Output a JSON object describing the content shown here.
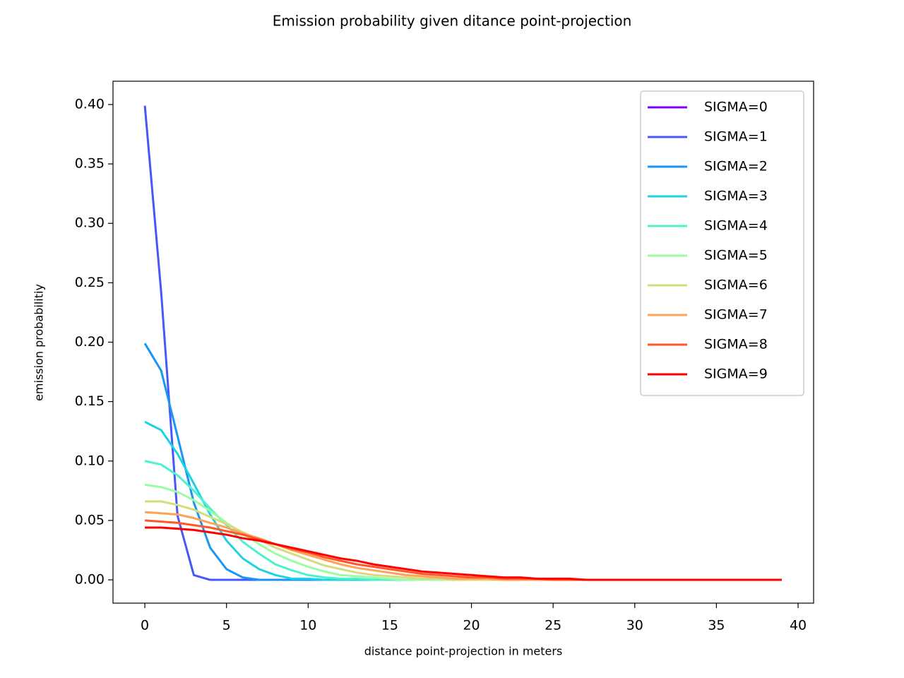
{
  "chart_data": {
    "type": "line",
    "title": "Emission probability given ditance point-projection",
    "xlabel": "distance point-projection in meters",
    "ylabel": "emission probabilitiy",
    "x": [
      0,
      1,
      2,
      3,
      4,
      5,
      6,
      7,
      8,
      9,
      10,
      11,
      12,
      13,
      14,
      15,
      16,
      17,
      18,
      19,
      20,
      21,
      22,
      23,
      24,
      25,
      26,
      27,
      28,
      29,
      30,
      31,
      32,
      33,
      34,
      35,
      36,
      37,
      38,
      39
    ],
    "xlim": [
      -1.95,
      40.95
    ],
    "xticks": [
      0,
      5,
      10,
      15,
      20,
      25,
      30,
      35,
      40
    ],
    "ylim": [
      -0.0196,
      0.4196
    ],
    "yticks": [
      {
        "value": 0,
        "label": "0.00"
      },
      {
        "value": 0.05,
        "label": "0.05"
      },
      {
        "value": 0.1,
        "label": "0.10"
      },
      {
        "value": 0.15,
        "label": "0.15"
      },
      {
        "value": 0.2,
        "label": "0.20"
      },
      {
        "value": 0.25,
        "label": "0.25"
      },
      {
        "value": 0.3,
        "label": "0.30"
      },
      {
        "value": 0.35,
        "label": "0.35"
      },
      {
        "value": 0.4,
        "label": "0.40"
      }
    ],
    "legend": "upper right",
    "series": [
      {
        "name": "SIGMA=0",
        "color": "#8000ff",
        "values": [
          null,
          null,
          null,
          null,
          null,
          null,
          null,
          null,
          null,
          null,
          null,
          null,
          null,
          null,
          null,
          null,
          null,
          null,
          null,
          null,
          null,
          null,
          null,
          null,
          null,
          null,
          null,
          null,
          null,
          null,
          null,
          null,
          null,
          null,
          null,
          null,
          null,
          null,
          null,
          null
        ]
      },
      {
        "name": "SIGMA=1",
        "color": "#4856fb",
        "values": [
          0.399,
          0.242,
          0.054,
          0.004,
          0,
          0,
          0,
          0,
          0,
          0,
          0,
          0,
          0,
          0,
          0,
          0,
          0,
          0,
          0,
          0,
          0,
          0,
          0,
          0,
          0,
          0,
          0,
          0,
          0,
          0,
          0,
          0,
          0,
          0,
          0,
          0,
          0,
          0,
          0,
          0
        ]
      },
      {
        "name": "SIGMA=2",
        "color": "#1996f3",
        "values": [
          0.199,
          0.176,
          0.121,
          0.065,
          0.027,
          0.009,
          0.002,
          0,
          0,
          0,
          0,
          0,
          0,
          0,
          0,
          0,
          0,
          0,
          0,
          0,
          0,
          0,
          0,
          0,
          0,
          0,
          0,
          0,
          0,
          0,
          0,
          0,
          0,
          0,
          0,
          0,
          0,
          0,
          0,
          0
        ]
      },
      {
        "name": "SIGMA=3",
        "color": "#1fd2e3",
        "values": [
          0.133,
          0.126,
          0.106,
          0.081,
          0.055,
          0.033,
          0.018,
          0.009,
          0.004,
          0.001,
          0.001,
          0,
          0,
          0,
          0,
          0,
          0,
          0,
          0,
          0,
          0,
          0,
          0,
          0,
          0,
          0,
          0,
          0,
          0,
          0,
          0,
          0,
          0,
          0,
          0,
          0,
          0,
          0,
          0,
          0
        ]
      },
      {
        "name": "SIGMA=4",
        "color": "#4cf2ce",
        "values": [
          0.1,
          0.097,
          0.088,
          0.075,
          0.06,
          0.046,
          0.032,
          0.022,
          0.013,
          0.008,
          0.004,
          0.002,
          0.001,
          0.001,
          0,
          0,
          0,
          0,
          0,
          0,
          0,
          0,
          0,
          0,
          0,
          0,
          0,
          0,
          0,
          0,
          0,
          0,
          0,
          0,
          0,
          0,
          0,
          0,
          0,
          0
        ]
      },
      {
        "name": "SIGMA=5",
        "color": "#9cfca4",
        "values": [
          0.08,
          0.078,
          0.074,
          0.067,
          0.058,
          0.048,
          0.039,
          0.03,
          0.022,
          0.016,
          0.011,
          0.007,
          0.004,
          0.003,
          0.002,
          0.001,
          0,
          0,
          0,
          0,
          0,
          0,
          0,
          0,
          0,
          0,
          0,
          0,
          0,
          0,
          0,
          0,
          0,
          0,
          0,
          0,
          0,
          0,
          0,
          0
        ]
      },
      {
        "name": "SIGMA=6",
        "color": "#d4dc7f",
        "values": [
          0.066,
          0.066,
          0.063,
          0.059,
          0.053,
          0.047,
          0.04,
          0.034,
          0.027,
          0.022,
          0.017,
          0.012,
          0.009,
          0.006,
          0.004,
          0.003,
          0.002,
          0.001,
          0.001,
          0,
          0,
          0,
          0,
          0,
          0,
          0,
          0,
          0,
          0,
          0,
          0,
          0,
          0,
          0,
          0,
          0,
          0,
          0,
          0,
          0
        ]
      },
      {
        "name": "SIGMA=7",
        "color": "#ffa256",
        "values": [
          0.057,
          0.056,
          0.055,
          0.052,
          0.048,
          0.044,
          0.039,
          0.035,
          0.03,
          0.025,
          0.021,
          0.017,
          0.013,
          0.01,
          0.008,
          0.006,
          0.004,
          0.003,
          0.002,
          0.001,
          0.001,
          0.001,
          0,
          0,
          0,
          0,
          0,
          0,
          0,
          0,
          0,
          0,
          0,
          0,
          0,
          0,
          0,
          0,
          0,
          0
        ]
      },
      {
        "name": "SIGMA=8",
        "color": "#ff562c",
        "values": [
          0.05,
          0.049,
          0.048,
          0.046,
          0.044,
          0.041,
          0.038,
          0.034,
          0.03,
          0.026,
          0.023,
          0.019,
          0.016,
          0.013,
          0.011,
          0.009,
          0.007,
          0.005,
          0.004,
          0.003,
          0.002,
          0.002,
          0.001,
          0.001,
          0.001,
          0,
          0,
          0,
          0,
          0,
          0,
          0,
          0,
          0,
          0,
          0,
          0,
          0,
          0,
          0
        ]
      },
      {
        "name": "SIGMA=9",
        "color": "#ff0000",
        "values": [
          0.044,
          0.044,
          0.043,
          0.042,
          0.04,
          0.038,
          0.035,
          0.033,
          0.03,
          0.027,
          0.024,
          0.021,
          0.018,
          0.016,
          0.013,
          0.011,
          0.009,
          0.007,
          0.006,
          0.005,
          0.004,
          0.003,
          0.002,
          0.002,
          0.001,
          0.001,
          0.001,
          0,
          0,
          0,
          0,
          0,
          0,
          0,
          0,
          0,
          0,
          0,
          0,
          0
        ]
      }
    ]
  }
}
